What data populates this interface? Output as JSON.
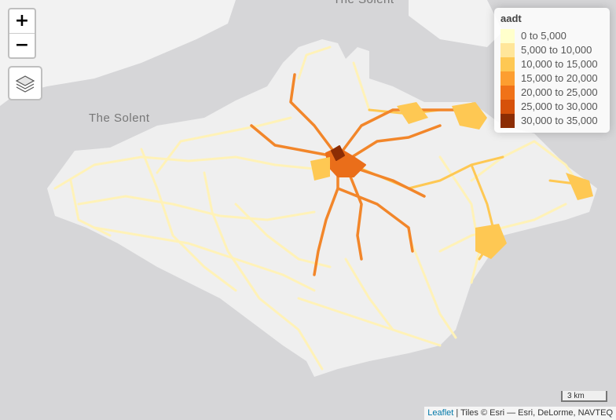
{
  "map": {
    "labels": [
      "The Solent",
      "The Solent"
    ],
    "colors": {
      "water": "#d6d6d8",
      "land": "#efefef",
      "coast_mainland": "#f4f4f4"
    }
  },
  "controls": {
    "zoom_in": "+",
    "zoom_out": "−",
    "layers_icon": "layers-icon"
  },
  "legend": {
    "title": "aadt",
    "items": [
      {
        "label": "0 to 5,000",
        "color": "#ffffcc"
      },
      {
        "label": "5,000 to 10,000",
        "color": "#ffe69a"
      },
      {
        "label": "10,000 to 15,000",
        "color": "#fec853"
      },
      {
        "label": "15,000 to 20,000",
        "color": "#fd9e30"
      },
      {
        "label": "20,000 to 25,000",
        "color": "#f07218"
      },
      {
        "label": "25,000 to 30,000",
        "color": "#d6510a"
      },
      {
        "label": "30,000 to 35,000",
        "color": "#8c2d04"
      }
    ]
  },
  "scale": {
    "label": "3 km"
  },
  "attribution": {
    "link": "Leaflet",
    "text": " | Tiles © Esri — Esri, DeLorme, NAVTEQ"
  }
}
